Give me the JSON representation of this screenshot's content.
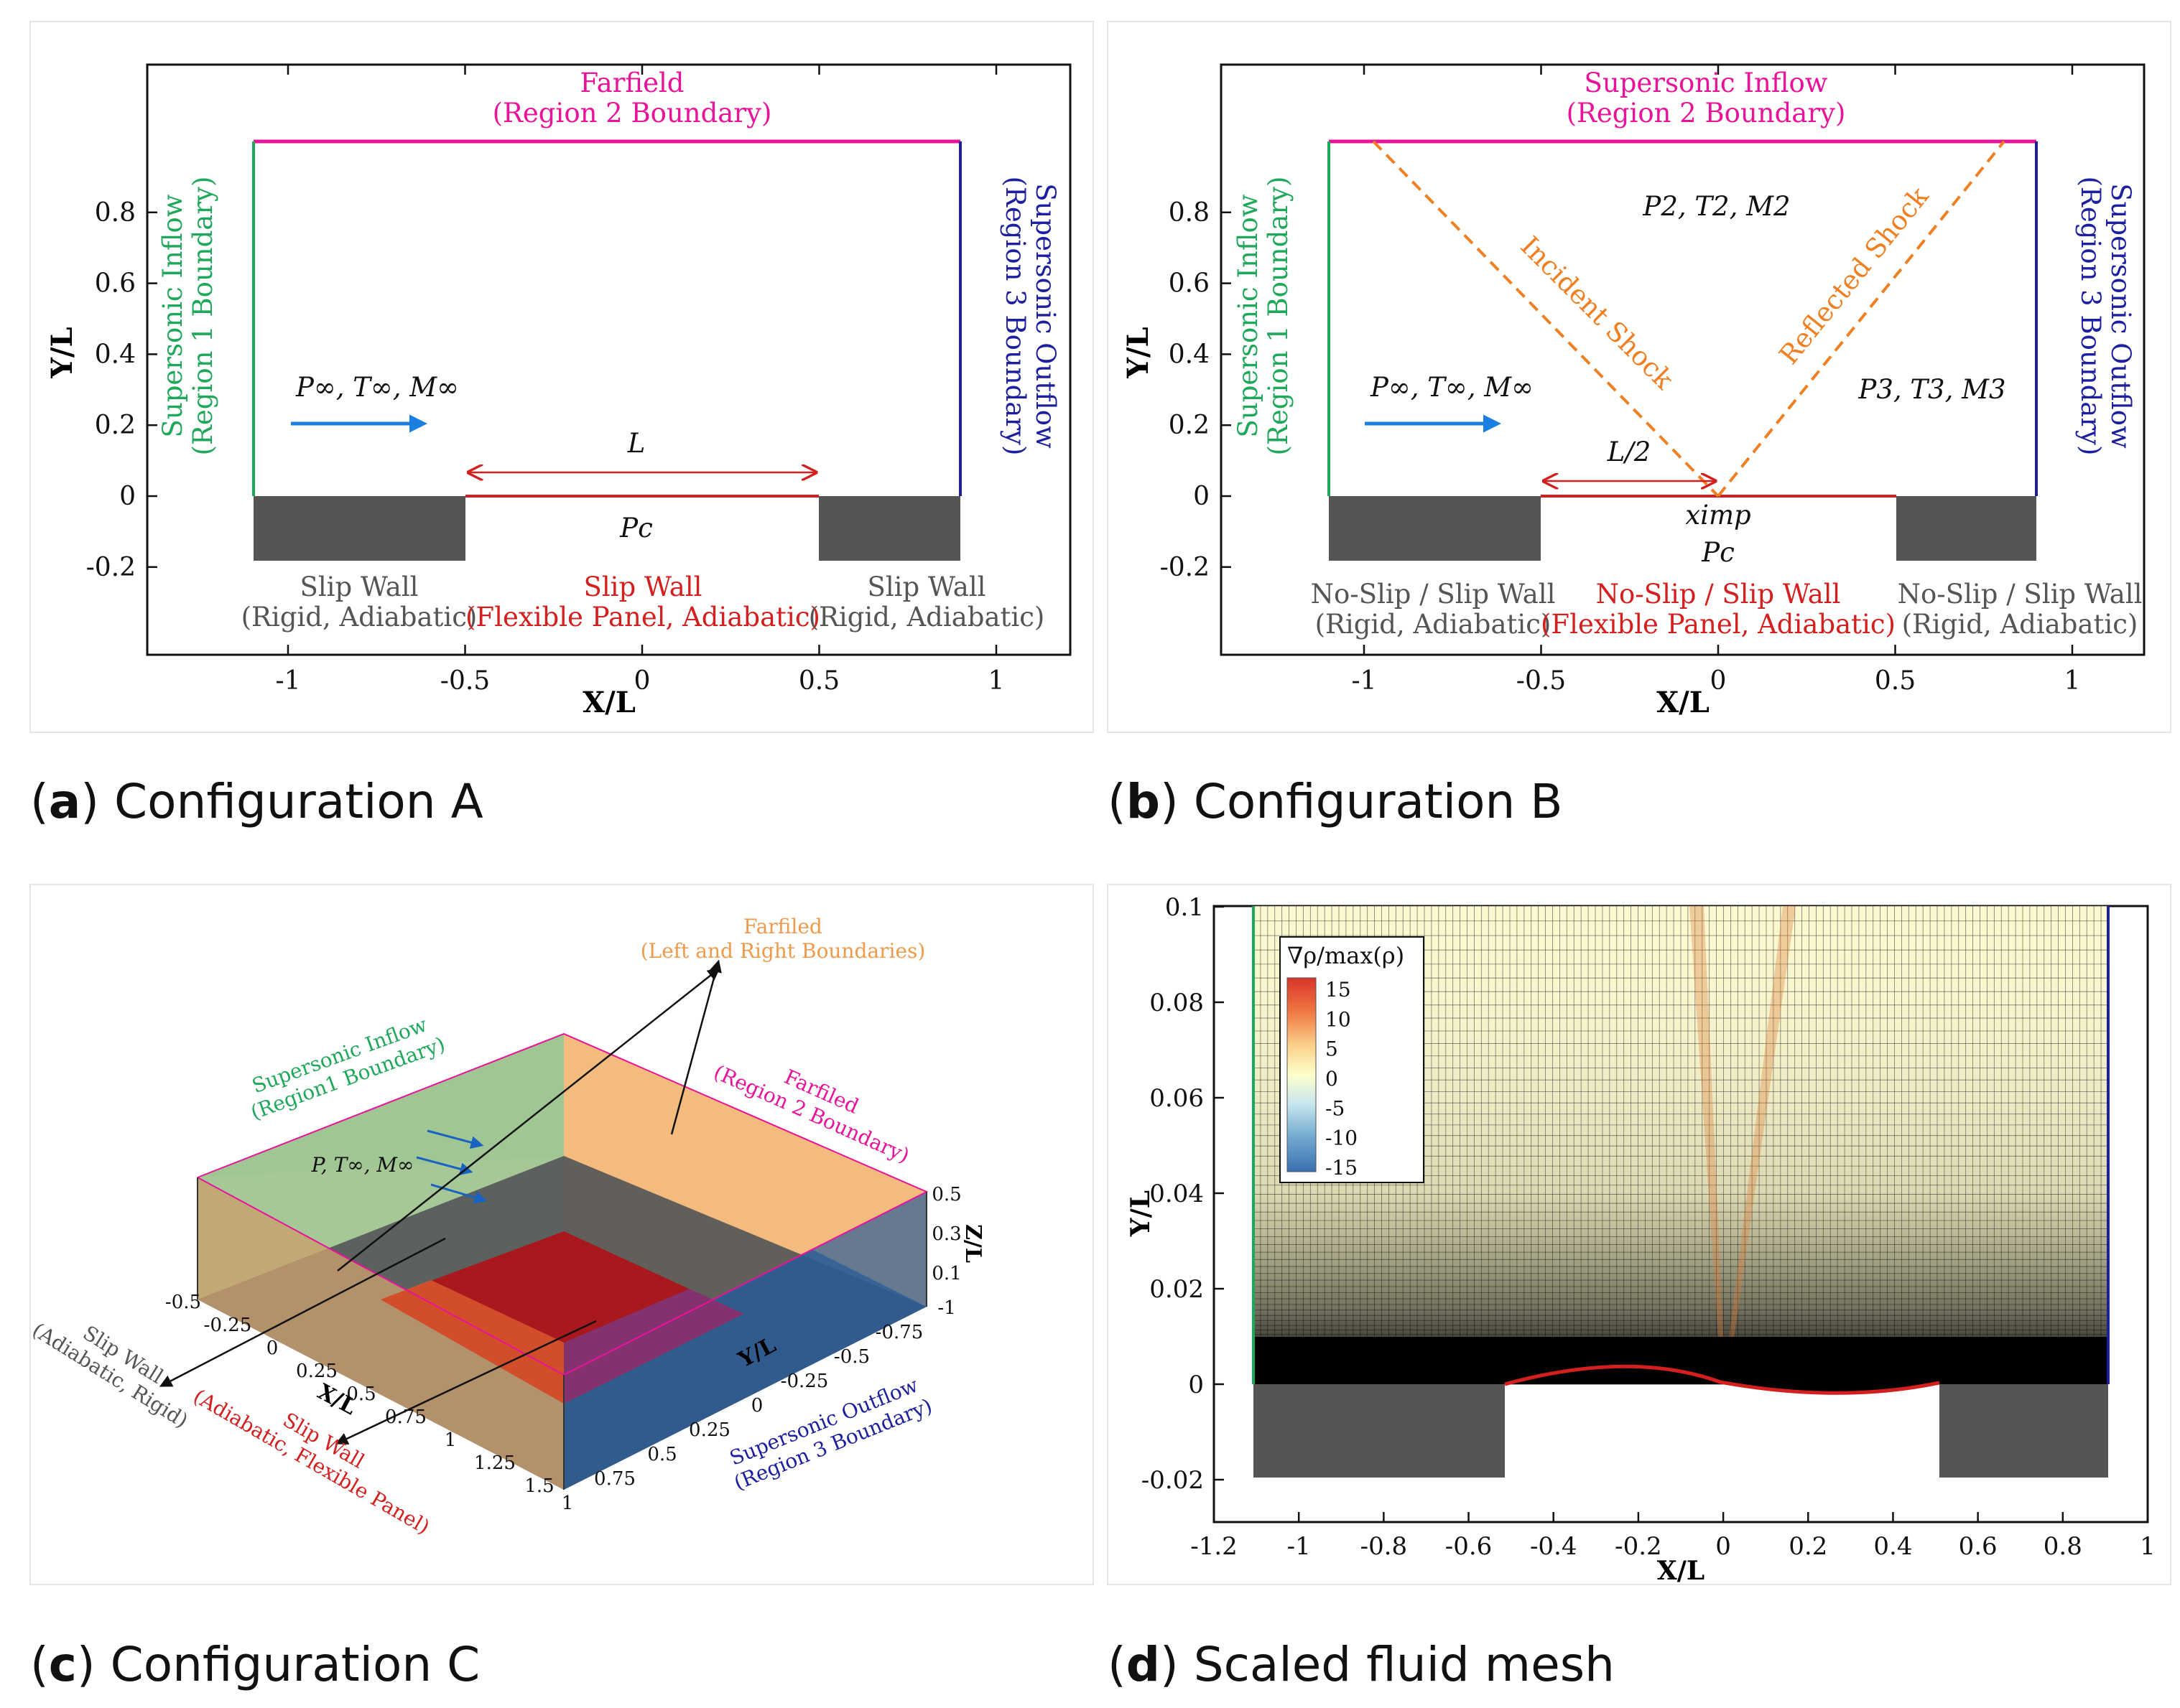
{
  "colors": {
    "green": "#1fa85a",
    "magenta": "#e8139a",
    "navy": "#1c1f9e",
    "red": "#d41f1f",
    "orange": "#ef7f21",
    "blue_arrow": "#1a7fe0",
    "gray": "#555555",
    "wall_block": "#555555"
  },
  "panels": {
    "a": {
      "caption_letter": "a",
      "caption_text": "Configuration A",
      "xlabel": "X/L",
      "ylabel": "Y/L",
      "xticks": [
        "-1",
        "-0.5",
        "0",
        "0.5",
        "1"
      ],
      "yticks": [
        "0.8",
        "0.6",
        "0.4",
        "0.2",
        "0",
        "-0.2"
      ],
      "top_title": "Farfield",
      "top_sub": "(Region 2 Boundary)",
      "left_title": "Supersonic Inflow",
      "left_sub": "(Region 1 Boundary)",
      "right_title": "Supersonic Outflow",
      "right_sub": "(Region 3 Boundary)",
      "freestream": "P∞, T∞, M∞",
      "length": "L",
      "pc": "Pc",
      "wall_left": "Slip Wall",
      "wall_left_sub": "(Rigid, Adiabatic)",
      "wall_mid": "Slip Wall",
      "wall_mid_sub": "(Flexible Panel, Adiabatic)",
      "wall_right": "Slip Wall",
      "wall_right_sub": "(Rigid, Adiabatic)"
    },
    "b": {
      "caption_letter": "b",
      "caption_text": "Configuration B",
      "xlabel": "X/L",
      "ylabel": "Y/L",
      "xticks": [
        "-1",
        "-0.5",
        "0",
        "0.5",
        "1"
      ],
      "yticks": [
        "0.8",
        "0.6",
        "0.4",
        "0.2",
        "0",
        "-0.2"
      ],
      "top_title": "Supersonic Inflow",
      "top_sub": "(Region 2 Boundary)",
      "left_title": "Supersonic Inflow",
      "left_sub": "(Region 1 Boundary)",
      "right_title": "Supersonic Outflow",
      "right_sub": "(Region 3 Boundary)",
      "freestream": "P∞, T∞, M∞",
      "region2": "P2, T2, M2",
      "region3": "P3, T3, M3",
      "incident": "Incident Shock",
      "reflected": "Reflected Shock",
      "half_length": "L/2",
      "ximp": "ximp",
      "pc": "Pc",
      "wall_left": "No-Slip / Slip Wall",
      "wall_left_sub": "(Rigid, Adiabatic)",
      "wall_mid": "No-Slip / Slip Wall",
      "wall_mid_sub": "(Flexible Panel, Adiabatic)",
      "wall_right": "No-Slip / Slip Wall",
      "wall_right_sub": "(Rigid, Adiabatic)"
    },
    "c": {
      "caption_letter": "c",
      "caption_text": "Configuration C",
      "farfield_lr": "Farfiled",
      "farfield_lr_sub": "(Left and Right Boundaries)",
      "inflow": "Supersonic Inflow",
      "inflow_sub": "(Region1 Boundary)",
      "farfield_top": "Farfiled",
      "farfield_top_sub": "(Region 2 Boundary)",
      "freestream": "P, T∞, M∞",
      "slip_rigid": "Slip Wall",
      "slip_rigid_sub": "(Adiabatic, Rigid)",
      "slip_flex": "Slip Wall",
      "slip_flex_sub": "(Adiabatic, Flexible Panel)",
      "outflow": "Supersonic Outflow",
      "outflow_sub": "(Region 3 Boundary)",
      "xlabel": "X/L",
      "ylabel": "Y/L",
      "zlabel": "Z/L",
      "xticks": [
        "-0.5",
        "-0.25",
        "0",
        "0.25",
        "0.5",
        "0.75",
        "1",
        "1.25",
        "1.5"
      ],
      "yticks": [
        "-1",
        "-0.75",
        "-0.5",
        "-0.25",
        "0",
        "0.25",
        "0.5",
        "0.75",
        "1"
      ],
      "zticks": [
        "0.5",
        "0.3",
        "0.1"
      ]
    },
    "d": {
      "caption_letter": "d",
      "caption_text": "Scaled fluid mesh",
      "xlabel": "X/L",
      "ylabel": "Y/L",
      "xticks": [
        "-1.2",
        "-1",
        "-0.8",
        "-0.6",
        "-0.4",
        "-0.2",
        "0",
        "0.2",
        "0.4",
        "0.6",
        "0.8",
        "1"
      ],
      "yticks": [
        "0.1",
        "0.08",
        "0.06",
        "0.04",
        "0.02",
        "0",
        "-0.02"
      ],
      "legend_title": "∇ρ/max(ρ)",
      "legend_ticks": [
        "15",
        "10",
        "5",
        "0",
        "-5",
        "-10",
        "-15"
      ]
    }
  }
}
